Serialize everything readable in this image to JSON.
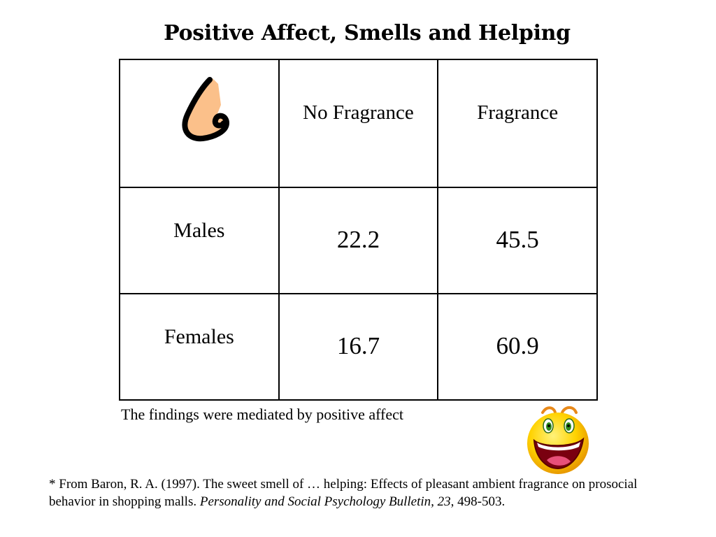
{
  "title": "Positive Affect, Smells and Helping",
  "table": {
    "columns": [
      "No Fragrance",
      "Fragrance"
    ],
    "rows": [
      {
        "label": "Males",
        "values": [
          "22.2",
          "45.5"
        ]
      },
      {
        "label": "Females",
        "values": [
          "16.7",
          "60.9"
        ]
      }
    ]
  },
  "icons": {
    "nose": "nose-icon",
    "smiley": "laughing-smiley-icon"
  },
  "colors": {
    "nose_fill": "#FBC08A",
    "smiley_fill": "#FFD200"
  },
  "note": "The findings were mediated by positive affect",
  "citation": {
    "prefix": "* From Baron, R. A.  (1997).  The sweet smell of … helping: Effects of pleasant ambient fragrance on prosocial behavior in shopping malls. ",
    "journal": "Personality and Social Psychology Bulletin, 23",
    "suffix": ", 498-503."
  }
}
